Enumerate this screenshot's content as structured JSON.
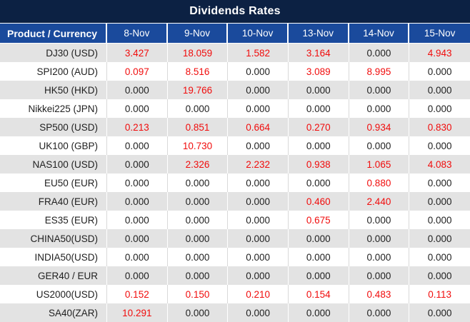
{
  "chart_data": {
    "type": "table",
    "title": "Dividends Rates",
    "columns": [
      "Product / Currency",
      "8-Nov",
      "9-Nov",
      "10-Nov",
      "13-Nov",
      "14-Nov",
      "15-Nov"
    ],
    "rows": [
      [
        "DJ30 (USD)",
        "3.427",
        "18.059",
        "1.582",
        "3.164",
        "0.000",
        "4.943"
      ],
      [
        "SPI200 (AUD)",
        "0.097",
        "8.516",
        "0.000",
        "3.089",
        "8.995",
        "0.000"
      ],
      [
        "HK50 (HKD)",
        "0.000",
        "19.766",
        "0.000",
        "0.000",
        "0.000",
        "0.000"
      ],
      [
        "Nikkei225 (JPN)",
        "0.000",
        "0.000",
        "0.000",
        "0.000",
        "0.000",
        "0.000"
      ],
      [
        "SP500 (USD)",
        "0.213",
        "0.851",
        "0.664",
        "0.270",
        "0.934",
        "0.830"
      ],
      [
        "UK100 (GBP)",
        "0.000",
        "10.730",
        "0.000",
        "0.000",
        "0.000",
        "0.000"
      ],
      [
        "NAS100 (USD)",
        "0.000",
        "2.326",
        "2.232",
        "0.938",
        "1.065",
        "4.083"
      ],
      [
        "EU50 (EUR)",
        "0.000",
        "0.000",
        "0.000",
        "0.000",
        "0.880",
        "0.000"
      ],
      [
        "FRA40 (EUR)",
        "0.000",
        "0.000",
        "0.000",
        "0.460",
        "2.440",
        "0.000"
      ],
      [
        "ES35 (EUR)",
        "0.000",
        "0.000",
        "0.000",
        "0.675",
        "0.000",
        "0.000"
      ],
      [
        "CHINA50(USD)",
        "0.000",
        "0.000",
        "0.000",
        "0.000",
        "0.000",
        "0.000"
      ],
      [
        "INDIA50(USD)",
        "0.000",
        "0.000",
        "0.000",
        "0.000",
        "0.000",
        "0.000"
      ],
      [
        "GER40 / EUR",
        "0.000",
        "0.000",
        "0.000",
        "0.000",
        "0.000",
        "0.000"
      ],
      [
        "US2000(USD)",
        "0.152",
        "0.150",
        "0.210",
        "0.154",
        "0.483",
        "0.113"
      ],
      [
        "SA40(ZAR)",
        "10.291",
        "0.000",
        "0.000",
        "0.000",
        "0.000",
        "0.000"
      ]
    ],
    "layout": {
      "stripe_rows": "odd rows shaded",
      "highlight_rule": "values greater than zero shown in red"
    }
  },
  "colors": {
    "title_bar_bg": "#0c2143",
    "header_bg": "#1a4a9c",
    "row_stripe_bg": "#e3e3e3",
    "row_white_bg": "#ffffff",
    "value_highlight_red": "#f10c0c",
    "value_text_dark": "#1f1f1f",
    "header_text": "#ffffff"
  }
}
